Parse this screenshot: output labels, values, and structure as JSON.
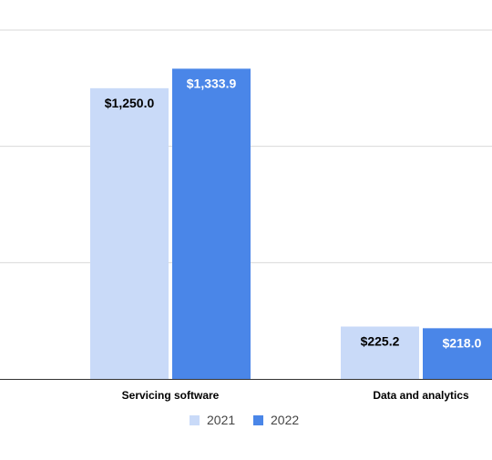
{
  "chart_data": {
    "type": "bar",
    "title": "",
    "xlabel": "",
    "ylabel": "",
    "categories": [
      "Servicing software",
      "Data and analytics"
    ],
    "series": [
      {
        "name": "2021",
        "values": [
          1250.0,
          225.2
        ],
        "labels": [
          "$1,250.0",
          "$225.2"
        ],
        "color": "#c9daf8"
      },
      {
        "name": "2022",
        "values": [
          1333.9,
          218.0
        ],
        "labels": [
          "$1,333.9",
          "$218.0"
        ],
        "color": "#4a86e8"
      }
    ],
    "ylim": [
      0,
      1500
    ],
    "gridline_values": [
      0,
      500,
      1000,
      1500
    ],
    "grid": true,
    "legend_position": "bottom",
    "colors": {
      "grid": "#d9d9d9",
      "axis": "#333333",
      "label_dark": "#000000",
      "label_light": "#ffffff",
      "legend_text": "#444444"
    }
  }
}
